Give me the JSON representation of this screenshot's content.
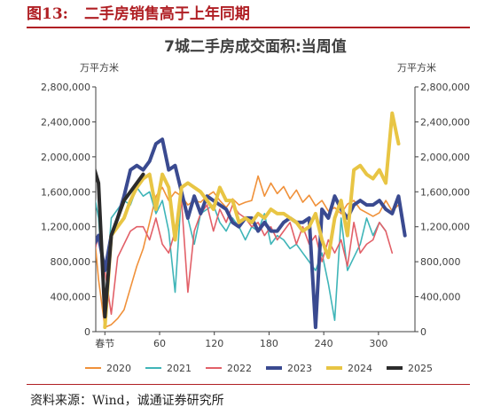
{
  "figure": {
    "number": "图13:",
    "title": "二手房销售高于上年同期",
    "source": "资料来源：Wind，诚通证券研究所"
  },
  "chart_data": {
    "type": "line",
    "title": "7城二手房成交面积:当周值",
    "ylabel_left": "万平方米",
    "ylabel_right": "万平方米",
    "ylim": [
      0,
      2800000
    ],
    "yticks": [
      0,
      400000,
      800000,
      1200000,
      1600000,
      2000000,
      2400000,
      2800000
    ],
    "ytick_labels": [
      "0",
      "400,000",
      "800,000",
      "1,200,000",
      "1,600,000",
      "2,000,000",
      "2,400,000",
      "2,800,000"
    ],
    "xlim": [
      -10,
      340
    ],
    "xticks": [
      0,
      60,
      120,
      180,
      240,
      300
    ],
    "xtick_labels": [
      "春节",
      "60",
      "120",
      "180",
      "240",
      "300"
    ],
    "legend_position": "bottom",
    "series": [
      {
        "name": "2020",
        "color": "#f0913a",
        "width": 1.6,
        "x": [
          -21,
          -14,
          -7,
          0,
          7,
          14,
          21,
          28,
          35,
          42,
          49,
          56,
          63,
          70,
          77,
          84,
          91,
          98,
          105,
          112,
          119,
          126,
          133,
          140,
          147,
          154,
          161,
          168,
          175,
          182,
          189,
          196,
          203,
          210,
          217,
          224,
          231,
          238,
          245,
          252,
          259,
          266,
          273,
          280,
          287,
          294,
          301,
          308,
          315,
          322
        ],
        "y": [
          1450000,
          1400000,
          600000,
          50000,
          80000,
          150000,
          250000,
          500000,
          750000,
          950000,
          1250000,
          1550000,
          1650000,
          1500000,
          1600000,
          1550000,
          1450000,
          1500000,
          1480000,
          1550000,
          1600000,
          1500000,
          1420000,
          1520000,
          1450000,
          1480000,
          1500000,
          1780000,
          1550000,
          1700000,
          1580000,
          1660000,
          1520000,
          1620000,
          1480000,
          1560000,
          1440000,
          1500000,
          1380000,
          1420000,
          1350000,
          1460000,
          1500000,
          1400000,
          1360000,
          1320000,
          1360000,
          1500000,
          1380000,
          1450000
        ]
      },
      {
        "name": "2021",
        "color": "#3fb5b8",
        "width": 1.6,
        "x": [
          -21,
          -14,
          -7,
          0,
          7,
          14,
          21,
          28,
          35,
          42,
          49,
          56,
          63,
          70,
          77,
          84,
          91,
          98,
          105,
          112,
          119,
          126,
          133,
          140,
          147,
          154,
          161,
          168,
          175,
          182,
          189,
          196,
          203,
          210,
          217,
          224,
          231,
          238,
          245,
          252,
          259,
          266,
          273,
          280,
          287,
          294,
          301,
          308
        ],
        "y": [
          1550000,
          1700000,
          1300000,
          300000,
          1300000,
          1400000,
          1500000,
          1450000,
          1650000,
          1550000,
          1600000,
          1350000,
          1500000,
          1150000,
          450000,
          1600000,
          1300000,
          1000000,
          1350000,
          1400000,
          1450000,
          1250000,
          1150000,
          1300000,
          1200000,
          1050000,
          1200000,
          1150000,
          1350000,
          1000000,
          1100000,
          1050000,
          950000,
          1000000,
          900000,
          800000,
          700000,
          900000,
          550000,
          130000,
          1300000,
          700000,
          850000,
          1000000,
          1300000,
          1100000,
          1250000,
          1150000
        ]
      },
      {
        "name": "2022",
        "color": "#e26068",
        "width": 1.6,
        "x": [
          -21,
          -14,
          -7,
          0,
          7,
          14,
          21,
          28,
          35,
          42,
          49,
          56,
          63,
          70,
          77,
          84,
          91,
          98,
          105,
          112,
          119,
          126,
          133,
          140,
          147,
          154,
          161,
          168,
          175,
          182,
          189,
          196,
          203,
          210,
          217,
          224,
          231,
          238,
          245,
          252,
          259,
          266,
          273,
          280,
          287,
          294,
          301,
          308,
          315
        ],
        "y": [
          1400000,
          800000,
          1100000,
          700000,
          200000,
          850000,
          1000000,
          1150000,
          1200000,
          1200000,
          1050000,
          1300000,
          1000000,
          900000,
          1150000,
          1500000,
          450000,
          1150000,
          1350000,
          1450000,
          1150000,
          1400000,
          1250000,
          1450000,
          1350000,
          1300000,
          1200000,
          1250000,
          1100000,
          1200000,
          1050000,
          1150000,
          1250000,
          1000000,
          1200000,
          1000000,
          1100000,
          800000,
          1050000,
          900000,
          1050000,
          750000,
          1250000,
          900000,
          1000000,
          1050000,
          1250000,
          1150000,
          900000
        ]
      },
      {
        "name": "2023",
        "color": "#3a4a90",
        "width": 4,
        "x": [
          -21,
          -14,
          -7,
          0,
          7,
          14,
          21,
          28,
          35,
          42,
          49,
          56,
          63,
          70,
          77,
          84,
          91,
          98,
          105,
          112,
          119,
          126,
          133,
          140,
          147,
          154,
          161,
          168,
          175,
          182,
          189,
          196,
          203,
          210,
          217,
          224,
          231,
          238,
          245,
          252,
          259,
          266,
          273,
          280,
          287,
          294,
          301,
          308,
          315,
          322,
          329
        ],
        "y": [
          1150000,
          950000,
          1100000,
          700000,
          1100000,
          1300000,
          1550000,
          1850000,
          1900000,
          1850000,
          1950000,
          2150000,
          2200000,
          1850000,
          1900000,
          1600000,
          1300000,
          1550000,
          1350000,
          1550000,
          1500000,
          1450000,
          1400000,
          1250000,
          1200000,
          1300000,
          1300000,
          1150000,
          1250000,
          1150000,
          1150000,
          1250000,
          1300000,
          1250000,
          1250000,
          1300000,
          50000,
          1400000,
          1300000,
          1550000,
          1400000,
          1300000,
          1450000,
          1500000,
          1450000,
          1450000,
          1500000,
          1400000,
          1350000,
          1550000,
          1100000
        ]
      },
      {
        "name": "2024",
        "color": "#e8c544",
        "width": 4,
        "x": [
          0,
          7,
          14,
          21,
          28,
          35,
          42,
          49,
          56,
          63,
          70,
          77,
          84,
          91,
          98,
          105,
          112,
          119,
          126,
          133,
          140,
          147,
          154,
          161,
          168,
          175,
          182,
          189,
          196,
          203,
          210,
          217,
          224,
          231,
          238,
          245,
          252,
          259,
          266,
          273,
          280,
          287,
          294,
          301,
          308,
          315,
          322
        ],
        "y": [
          50000,
          1100000,
          1200000,
          1300000,
          1500000,
          1650000,
          1750000,
          1800000,
          1400000,
          1800000,
          1650000,
          1050000,
          1650000,
          1700000,
          1650000,
          1600000,
          1500000,
          1400000,
          1650000,
          1500000,
          1500000,
          1250000,
          1300000,
          1250000,
          1350000,
          1300000,
          1400000,
          1350000,
          1350000,
          1300000,
          1250000,
          1150000,
          1200000,
          1350000,
          1050000,
          850000,
          1300000,
          1500000,
          1100000,
          1850000,
          1900000,
          1800000,
          1750000,
          1850000,
          1700000,
          2500000,
          2150000
        ]
      },
      {
        "name": "2025",
        "color": "#2b2b2b",
        "width": 4,
        "x": [
          -21,
          -14,
          -7,
          0,
          7,
          14,
          21,
          28,
          35,
          42
        ],
        "y": [
          2000000,
          1950000,
          1700000,
          170000,
          1100000,
          1300000,
          1500000,
          1600000,
          1700000,
          1800000
        ]
      }
    ]
  }
}
